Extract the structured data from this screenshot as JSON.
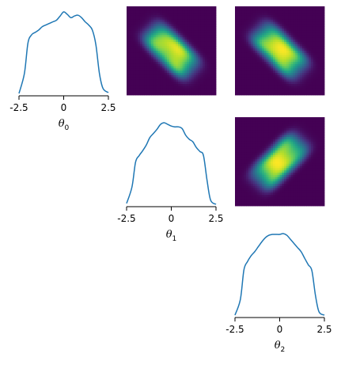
{
  "chart_data": {
    "type": "pairplot",
    "variables": [
      {
        "symbol": "θ",
        "subscript": "0"
      },
      {
        "symbol": "θ",
        "subscript": "1"
      },
      {
        "symbol": "θ",
        "subscript": "2"
      }
    ],
    "xlim": [
      -2.5,
      2.5
    ],
    "xticks": [
      -2.5,
      0,
      2.5
    ],
    "xtick_labels": [
      "-2.5",
      "0",
      "2.5"
    ],
    "colormap": "viridis",
    "line_color": "#1f77b4",
    "marginals": [
      {
        "name": "θ0",
        "x": [
          -2.5,
          -2.2,
          -2.0,
          -1.8,
          -1.6,
          -1.4,
          -1.2,
          -1.0,
          -0.8,
          -0.6,
          -0.4,
          -0.2,
          0.0,
          0.2,
          0.4,
          0.6,
          0.8,
          1.0,
          1.2,
          1.4,
          1.6,
          1.8,
          2.0,
          2.2,
          2.5
        ],
        "density": [
          0.01,
          0.25,
          0.62,
          0.72,
          0.75,
          0.78,
          0.82,
          0.84,
          0.86,
          0.88,
          0.9,
          0.95,
          1.0,
          0.97,
          0.93,
          0.95,
          0.96,
          0.93,
          0.88,
          0.84,
          0.78,
          0.6,
          0.25,
          0.07,
          0.02
        ]
      },
      {
        "name": "θ1",
        "x": [
          -2.5,
          -2.2,
          -2.0,
          -1.8,
          -1.6,
          -1.4,
          -1.2,
          -1.0,
          -0.8,
          -0.6,
          -0.4,
          -0.2,
          0.0,
          0.2,
          0.4,
          0.6,
          0.8,
          1.0,
          1.2,
          1.4,
          1.6,
          1.8,
          2.0,
          2.2,
          2.5
        ],
        "density": [
          0.02,
          0.22,
          0.52,
          0.6,
          0.66,
          0.73,
          0.82,
          0.87,
          0.92,
          0.98,
          1.0,
          0.98,
          0.96,
          0.95,
          0.95,
          0.93,
          0.85,
          0.8,
          0.77,
          0.7,
          0.65,
          0.6,
          0.3,
          0.06,
          0.01
        ]
      },
      {
        "name": "θ2",
        "x": [
          -2.5,
          -2.2,
          -2.0,
          -1.8,
          -1.6,
          -1.4,
          -1.2,
          -1.0,
          -0.8,
          -0.6,
          -0.4,
          -0.2,
          0.0,
          0.2,
          0.4,
          0.6,
          0.8,
          1.0,
          1.2,
          1.4,
          1.6,
          1.8,
          2.0,
          2.2,
          2.5
        ],
        "density": [
          0.01,
          0.2,
          0.56,
          0.66,
          0.73,
          0.78,
          0.84,
          0.9,
          0.95,
          0.98,
          0.99,
          0.99,
          0.99,
          1.0,
          0.98,
          0.93,
          0.88,
          0.83,
          0.78,
          0.7,
          0.62,
          0.55,
          0.25,
          0.05,
          0.01
        ]
      }
    ],
    "pairs": [
      {
        "name": "θ0 vs θ1",
        "correlation": -0.6
      },
      {
        "name": "θ0 vs θ2",
        "correlation": -0.55
      },
      {
        "name": "θ1 vs θ2",
        "correlation": 0.6
      }
    ]
  }
}
